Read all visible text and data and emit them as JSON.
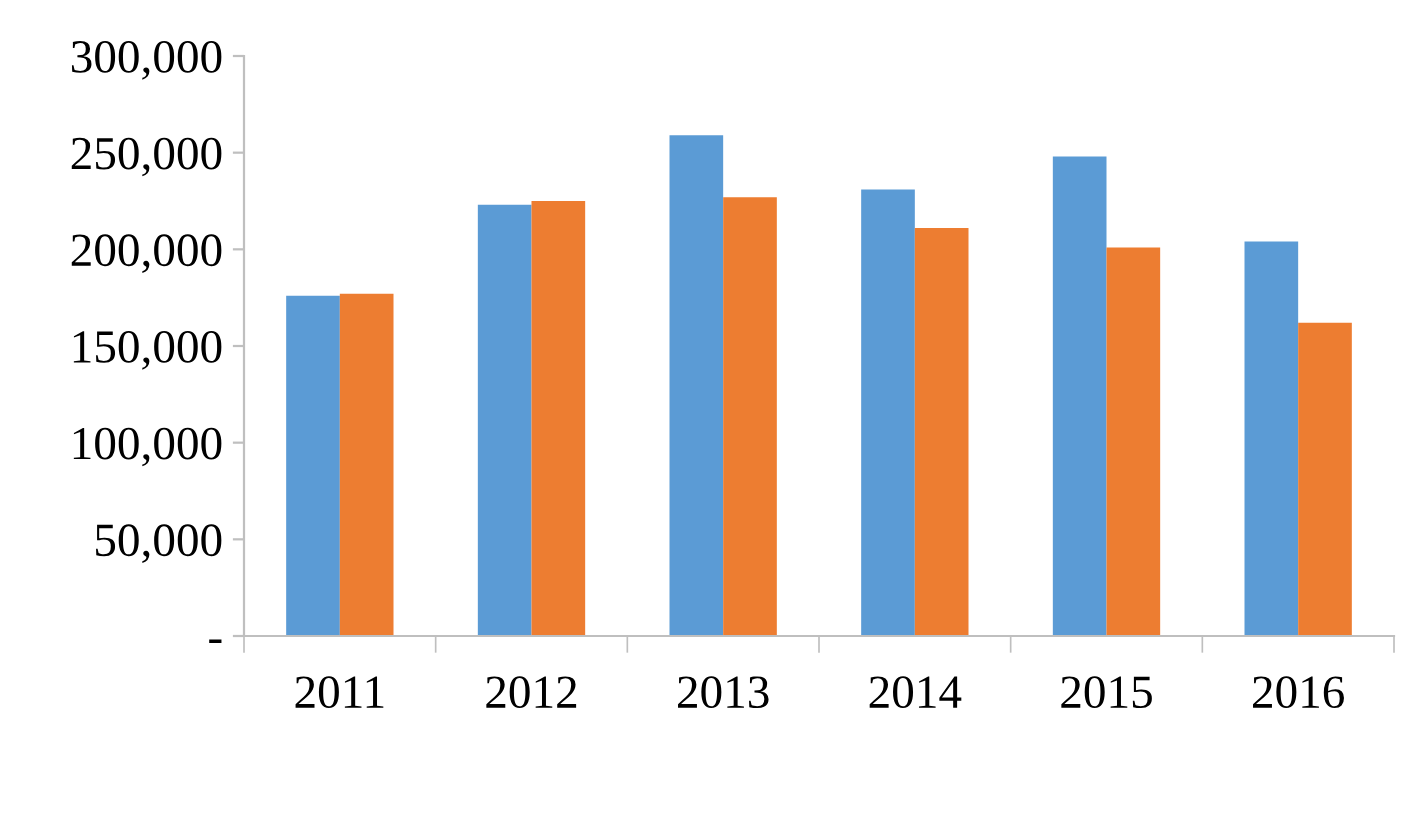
{
  "chart_data": {
    "type": "bar",
    "categories": [
      "2011",
      "2012",
      "2013",
      "2014",
      "2015",
      "2016"
    ],
    "series": [
      {
        "color": "#5b9bd5",
        "values": [
          176000,
          223000,
          259000,
          231000,
          248000,
          204000
        ]
      },
      {
        "color": "#ed7d31",
        "values": [
          177000,
          225000,
          227000,
          211000,
          201000,
          162000
        ]
      }
    ],
    "ylim": [
      0,
      300000
    ],
    "yticks": [
      {
        "value": 0,
        "label": "-"
      },
      {
        "value": 50000,
        "label": "50,000"
      },
      {
        "value": 100000,
        "label": "100,000"
      },
      {
        "value": 150000,
        "label": "150,000"
      },
      {
        "value": 200000,
        "label": "200,000"
      },
      {
        "value": 250000,
        "label": "250,000"
      },
      {
        "value": 300000,
        "label": "300,000"
      }
    ],
    "grid": false
  }
}
